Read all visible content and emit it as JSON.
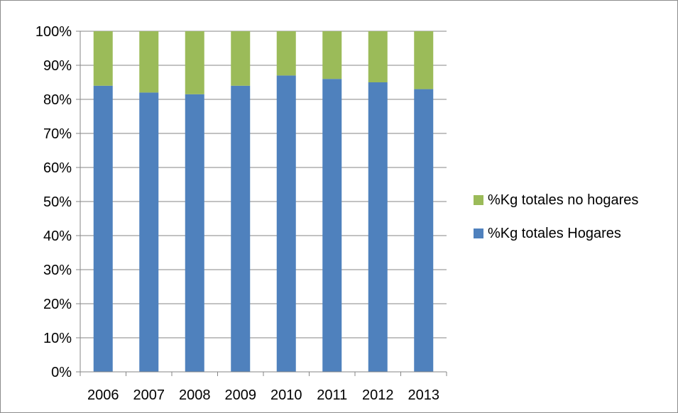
{
  "chart_data": {
    "type": "bar",
    "stacked": true,
    "percent_stacked": true,
    "title": "",
    "xlabel": "",
    "ylabel": "",
    "categories": [
      "2006",
      "2007",
      "2008",
      "2009",
      "2010",
      "2011",
      "2012",
      "2013"
    ],
    "series": [
      {
        "name": "%Kg totales Hogares",
        "color": "#4f81bd",
        "values": [
          84,
          82,
          81.5,
          84,
          87,
          86,
          85,
          83
        ]
      },
      {
        "name": "%Kg totales no hogares",
        "color": "#9bbb59",
        "values": [
          16,
          18,
          18.5,
          16,
          13,
          14,
          15,
          17
        ]
      }
    ],
    "ylim": [
      0,
      100
    ],
    "yticks": [
      "0%",
      "10%",
      "20%",
      "30%",
      "40%",
      "50%",
      "60%",
      "70%",
      "80%",
      "90%",
      "100%"
    ],
    "grid": true,
    "legend_position": "right",
    "legend_order": [
      "%Kg totales no hogares",
      "%Kg totales Hogares"
    ]
  }
}
